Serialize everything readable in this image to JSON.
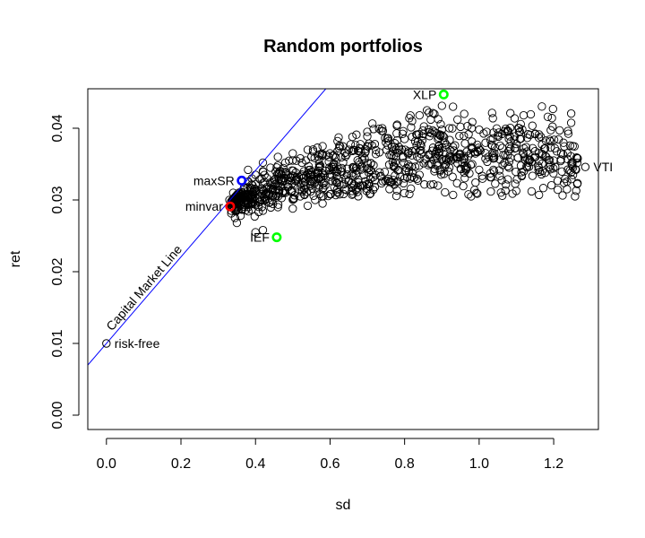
{
  "chart_data": {
    "type": "scatter",
    "title": "Random portfolios",
    "xlabel": "sd",
    "ylabel": "ret",
    "xlim": [
      -0.05,
      1.32
    ],
    "ylim": [
      -0.002,
      0.0455
    ],
    "xticks": [
      0.0,
      0.2,
      0.4,
      0.6,
      0.8,
      1.0,
      1.2
    ],
    "xtick_labels": [
      "0.0",
      "0.2",
      "0.4",
      "0.6",
      "0.8",
      "1.0",
      "1.2"
    ],
    "yticks": [
      0.0,
      0.01,
      0.02,
      0.03,
      0.04
    ],
    "ytick_labels": [
      "0.00",
      "0.01",
      "0.02",
      "0.03",
      "0.04"
    ],
    "grid": false,
    "legend": "none",
    "capital_market_line": {
      "label": "Capital Market Line",
      "intercept": 0.01,
      "slope": 0.0603,
      "color": "#0000ff"
    },
    "labeled_points": [
      {
        "label": "risk-free",
        "x": 0.0,
        "y": 0.01,
        "color": "#000000",
        "label_side": "right"
      },
      {
        "label": "maxSR",
        "x": 0.363,
        "y": 0.0327,
        "color": "#0000ff",
        "label_side": "left"
      },
      {
        "label": "minvar",
        "x": 0.332,
        "y": 0.0291,
        "color": "#ff0000",
        "label_side": "left"
      },
      {
        "label": "IEF",
        "x": 0.457,
        "y": 0.0248,
        "color": "#00ff00",
        "label_side": "left"
      },
      {
        "label": "XLP",
        "x": 0.905,
        "y": 0.0447,
        "color": "#00ff00",
        "label_side": "left"
      },
      {
        "label": "VTI",
        "x": 1.285,
        "y": 0.0346,
        "color": "#000000",
        "label_side": "right"
      }
    ],
    "random_portfolios": {
      "count": 1000,
      "description_seed": 7,
      "points": [
        [
          0.33,
          0.03
        ],
        [
          0.34,
          0.031
        ],
        [
          0.335,
          0.0285
        ],
        [
          0.345,
          0.0275
        ],
        [
          0.35,
          0.0268
        ],
        [
          0.355,
          0.0295
        ],
        [
          0.36,
          0.0305
        ],
        [
          0.37,
          0.0318
        ],
        [
          0.38,
          0.0325
        ],
        [
          0.39,
          0.033
        ],
        [
          0.4,
          0.0335
        ],
        [
          0.42,
          0.034
        ],
        [
          0.44,
          0.0345
        ],
        [
          0.46,
          0.0348
        ],
        [
          0.48,
          0.0352
        ],
        [
          0.5,
          0.0355
        ],
        [
          0.52,
          0.0358
        ],
        [
          0.55,
          0.036
        ],
        [
          0.58,
          0.0362
        ],
        [
          0.6,
          0.0365
        ],
        [
          0.62,
          0.0368
        ],
        [
          0.65,
          0.037
        ],
        [
          0.68,
          0.0372
        ],
        [
          0.7,
          0.0375
        ],
        [
          0.72,
          0.0378
        ],
        [
          0.75,
          0.038
        ],
        [
          0.78,
          0.0383
        ],
        [
          0.8,
          0.0385
        ],
        [
          0.82,
          0.0388
        ],
        [
          0.85,
          0.0392
        ],
        [
          0.88,
          0.0395
        ],
        [
          0.9,
          0.0398
        ],
        [
          0.92,
          0.04
        ],
        [
          0.95,
          0.0402
        ],
        [
          0.98,
          0.04
        ],
        [
          1.0,
          0.0398
        ],
        [
          1.02,
          0.0395
        ],
        [
          1.05,
          0.039
        ],
        [
          1.08,
          0.0385
        ],
        [
          1.1,
          0.0378
        ],
        [
          1.12,
          0.0372
        ],
        [
          1.15,
          0.0368
        ],
        [
          1.18,
          0.036
        ],
        [
          1.2,
          0.0355
        ],
        [
          1.22,
          0.0365
        ],
        [
          1.25,
          0.035
        ],
        [
          0.86,
          0.0425
        ],
        [
          0.88,
          0.042
        ],
        [
          0.87,
          0.0412
        ],
        [
          0.93,
          0.043
        ],
        [
          0.96,
          0.042
        ],
        [
          0.84,
          0.0418
        ],
        [
          0.82,
          0.041
        ],
        [
          0.78,
          0.0405
        ],
        [
          0.74,
          0.04
        ],
        [
          0.7,
          0.0395
        ],
        [
          0.66,
          0.0388
        ],
        [
          0.62,
          0.0382
        ],
        [
          0.58,
          0.0375
        ],
        [
          0.54,
          0.037
        ],
        [
          0.5,
          0.0365
        ],
        [
          0.46,
          0.036
        ],
        [
          0.42,
          0.0352
        ],
        [
          0.38,
          0.0342
        ],
        [
          0.4,
          0.0322
        ],
        [
          0.44,
          0.0315
        ],
        [
          0.48,
          0.031
        ],
        [
          0.52,
          0.0305
        ],
        [
          0.56,
          0.03
        ],
        [
          0.6,
          0.0308
        ],
        [
          0.64,
          0.0315
        ],
        [
          0.68,
          0.032
        ],
        [
          0.72,
          0.0318
        ],
        [
          0.76,
          0.0325
        ],
        [
          0.8,
          0.033
        ],
        [
          0.84,
          0.0335
        ],
        [
          0.88,
          0.034
        ],
        [
          0.92,
          0.0345
        ],
        [
          0.96,
          0.0338
        ],
        [
          1.0,
          0.0342
        ],
        [
          1.04,
          0.034
        ],
        [
          1.08,
          0.0345
        ],
        [
          1.12,
          0.034
        ],
        [
          1.16,
          0.0345
        ],
        [
          0.42,
          0.0285
        ],
        [
          0.46,
          0.029
        ],
        [
          0.5,
          0.0288
        ],
        [
          0.54,
          0.0292
        ],
        [
          0.58,
          0.0295
        ],
        [
          0.4,
          0.0255
        ],
        [
          0.42,
          0.0258
        ],
        [
          0.36,
          0.0278
        ],
        [
          0.38,
          0.0295
        ],
        [
          0.45,
          0.0328
        ],
        [
          0.47,
          0.0335
        ],
        [
          0.53,
          0.034
        ],
        [
          0.57,
          0.0345
        ],
        [
          0.61,
          0.035
        ],
        [
          0.63,
          0.034
        ],
        [
          0.67,
          0.0345
        ]
      ]
    }
  }
}
